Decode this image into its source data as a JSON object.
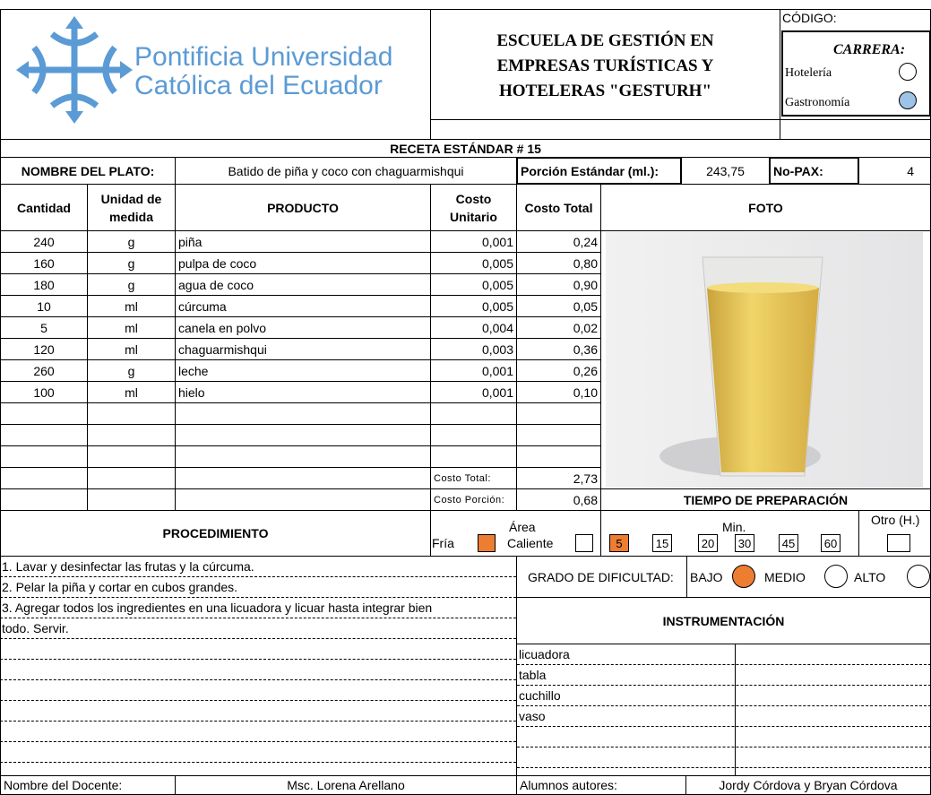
{
  "header": {
    "university": [
      "Pontificia Universidad",
      "Católica del Ecuador"
    ],
    "school": [
      "ESCUELA DE GESTIÓN EN",
      "EMPRESAS TURÍSTICAS Y",
      "HOTELERAS \"GESTURH\""
    ],
    "code_label": "CÓDIGO:",
    "career_label": "CARRERA:",
    "careers": [
      "Hotelería",
      "Gastronomía"
    ]
  },
  "recipe_title": "RECETA ESTÁNDAR # 15",
  "dish": {
    "label": "NOMBRE DEL PLATO:",
    "name": "Batido de piña y coco con chaguarmishqui",
    "portion_label": "Porción Estándar (ml.):",
    "portion": "243,75",
    "pax_label": "No-PAX:",
    "pax": "4"
  },
  "table": {
    "headers": [
      "Cantidad",
      "Unidad de medida",
      "PRODUCTO",
      "Costo Unitario",
      "Costo Total",
      "FOTO"
    ],
    "rows": [
      [
        "240",
        "g",
        "piña",
        "0,001",
        "0,24"
      ],
      [
        "160",
        "g",
        "pulpa de coco",
        "0,005",
        "0,80"
      ],
      [
        "180",
        "g",
        "agua de coco",
        "0,005",
        "0,90"
      ],
      [
        "10",
        "ml",
        "cúrcuma",
        "0,005",
        "0,05"
      ],
      [
        "5",
        "ml",
        "canela en polvo",
        "0,004",
        "0,02"
      ],
      [
        "120",
        "ml",
        "chaguarmishqui",
        "0,003",
        "0,36"
      ],
      [
        "260",
        "g",
        "leche",
        "0,001",
        "0,26"
      ],
      [
        "100",
        "ml",
        "hielo",
        "0,001",
        "0,10"
      ]
    ],
    "total_label": "Costo Total:",
    "total": "2,73",
    "portion_cost_label": "Costo Porción:",
    "portion_cost": "0,68"
  },
  "prep_time": {
    "title": "TIEMPO DE PREPARACIÓN",
    "min_label": "Min.",
    "minutes": [
      "5",
      "15",
      "20",
      "30",
      "45",
      "60"
    ],
    "other_label": "Otro (H.)"
  },
  "area": {
    "label": "Área",
    "options": [
      "Fría",
      "Caliente"
    ]
  },
  "procedure": {
    "title": "PROCEDIMIENTO",
    "lines": [
      "1. Lavar y desinfectar las frutas y la cúrcuma.",
      "2. Pelar la piña y cortar en cubos grandes.",
      "3. Agregar todos los ingredientes en una licuadora y licuar hasta integrar bien",
      "todo. Servir."
    ]
  },
  "difficulty": {
    "label": "GRADO DE DIFICULTAD:",
    "levels": [
      "BAJO",
      "MEDIO",
      "ALTO"
    ]
  },
  "instruments": {
    "title": "INSTRUMENTACIÓN",
    "items": [
      "licuadora",
      "tabla",
      "cuchillo",
      "vaso"
    ]
  },
  "footer": {
    "teacher_label": "Nombre del Docente:",
    "teacher": "Msc. Lorena Arellano",
    "authors_label": "Alumnos autores:",
    "authors": "Jordy Córdova y Bryan Córdova"
  }
}
